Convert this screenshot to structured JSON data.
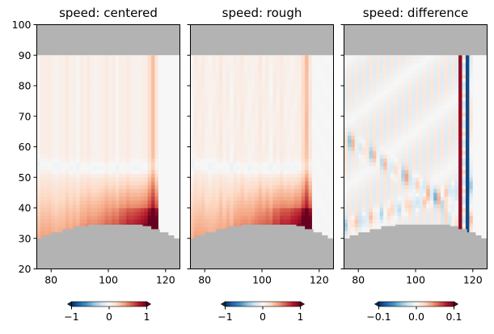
{
  "chart_data": {
    "type": "heatmap",
    "panels": [
      {
        "title": "speed: centered",
        "colorbar_ticks": [
          "−1",
          "0",
          "1"
        ],
        "vlim": [
          -1,
          1
        ],
        "field": "centered"
      },
      {
        "title": "speed: rough",
        "colorbar_ticks": [
          "−1",
          "0",
          "1"
        ],
        "vlim": [
          -1,
          1
        ],
        "field": "rough"
      },
      {
        "title": "speed: difference",
        "colorbar_ticks": [
          "−0.1",
          "0.0",
          "0.1"
        ],
        "vlim": [
          -0.1,
          0.1
        ],
        "field": "difference"
      }
    ],
    "xlim": [
      75,
      125
    ],
    "ylim": [
      20,
      100
    ],
    "x_ticks": [
      "80",
      "100",
      "120"
    ],
    "x_tick_values": [
      80,
      100,
      120
    ],
    "y_ticks": [
      "20",
      "30",
      "40",
      "50",
      "60",
      "70",
      "80",
      "90",
      "100"
    ],
    "y_tick_values": [
      20,
      30,
      40,
      50,
      60,
      70,
      80,
      90,
      100
    ],
    "colormap": "RdBu_r",
    "masked_color": "#b3b3b3",
    "mask_top": 90,
    "seafloor_profile": [
      [
        75,
        30
      ],
      [
        77,
        31
      ],
      [
        80,
        32
      ],
      [
        84,
        33
      ],
      [
        88,
        34
      ],
      [
        93,
        34.5
      ],
      [
        108,
        34.5
      ],
      [
        112,
        34
      ],
      [
        115,
        33
      ],
      [
        118,
        32
      ],
      [
        121,
        31
      ],
      [
        123,
        30
      ],
      [
        125,
        30
      ]
    ]
  }
}
